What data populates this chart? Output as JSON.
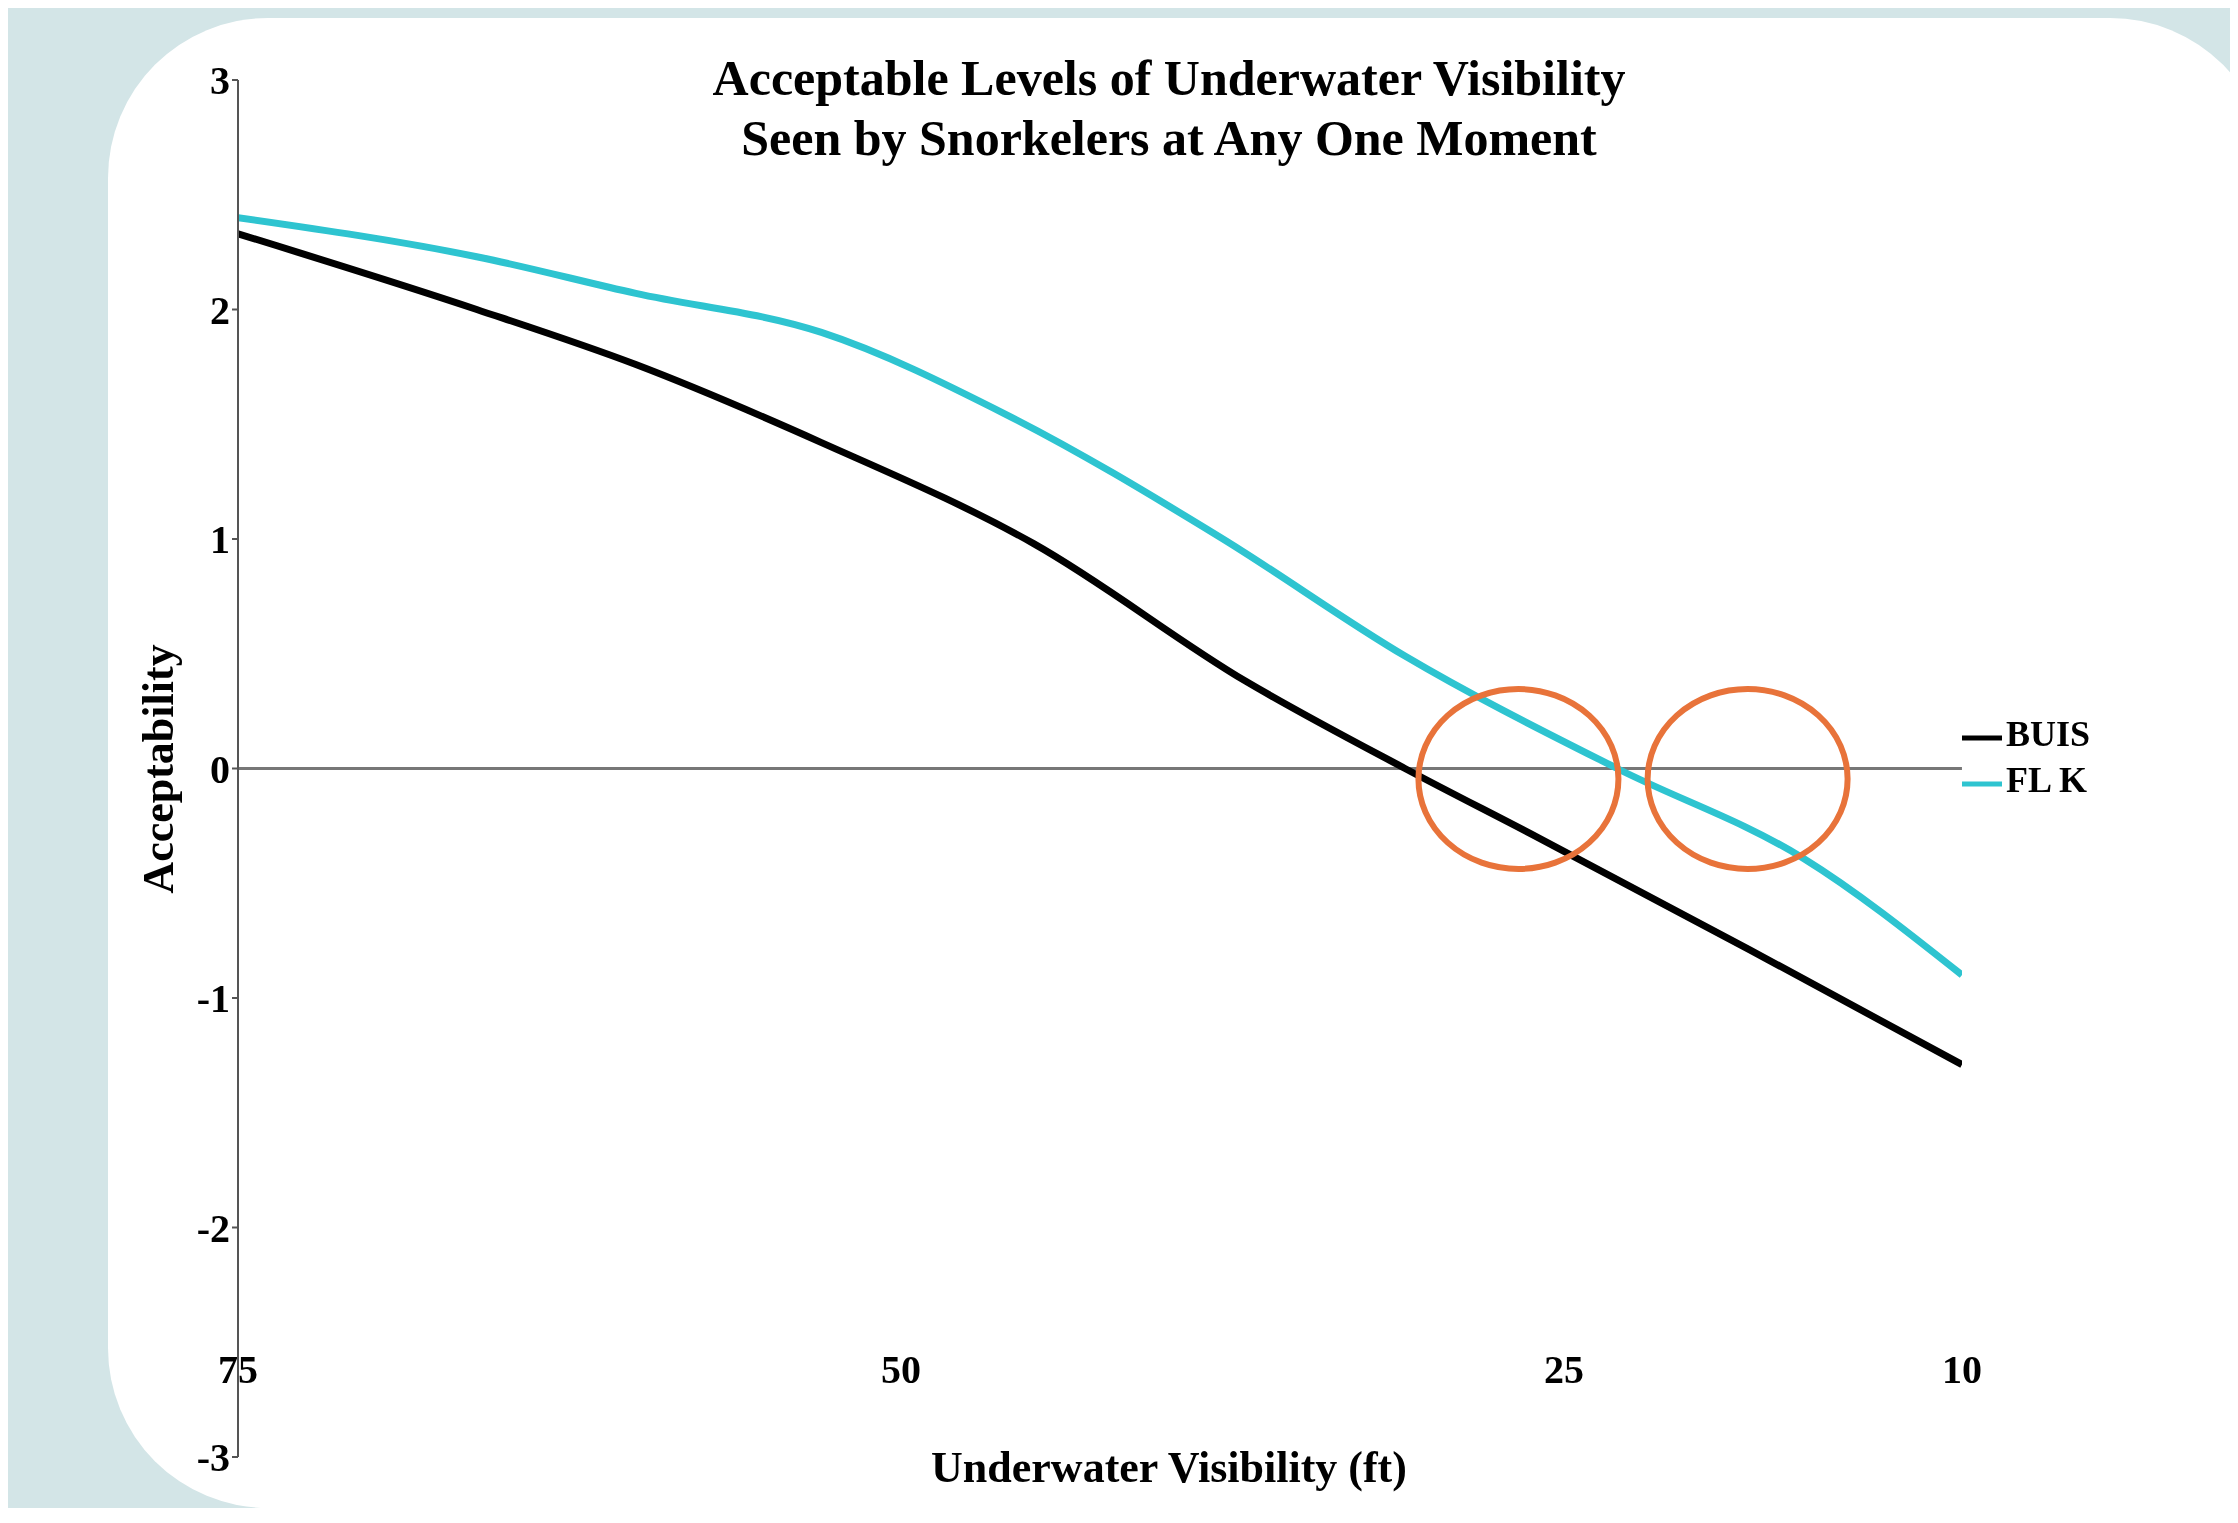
{
  "chart_data": {
    "type": "line",
    "title": "Acceptable Levels of Underwater Visibility\nSeen by Snorkelers at Any One Moment",
    "xlabel": "Underwater Visibility (ft)",
    "ylabel": "Acceptability",
    "xlim": [
      75,
      10
    ],
    "xticks": [
      75,
      50,
      25,
      10
    ],
    "ylim": [
      -3,
      3
    ],
    "yticks": [
      -3,
      -2,
      -1,
      0,
      1,
      2,
      3
    ],
    "series": [
      {
        "name": "BUIS",
        "color": "#000000",
        "x": [
          75,
          66,
          60,
          53,
          45,
          37,
          31,
          26,
          18,
          10
        ],
        "values": [
          2.33,
          2.0,
          1.76,
          1.42,
          0.98,
          0.38,
          0,
          -0.3,
          -0.79,
          -1.29
        ]
      },
      {
        "name": "FL K",
        "color": "#2ec4d0",
        "x": [
          75,
          66,
          60,
          53,
          46,
          38,
          31,
          23,
          16,
          10
        ],
        "values": [
          2.4,
          2.23,
          2.07,
          1.9,
          1.54,
          1.01,
          0.49,
          0,
          -0.39,
          -0.9
        ]
      }
    ],
    "ref_lines": [
      {
        "axis": "y",
        "value": 0,
        "color": "#777777"
      }
    ],
    "grid": false,
    "legend": "right",
    "marker": "none",
    "line_style": "solid"
  }
}
